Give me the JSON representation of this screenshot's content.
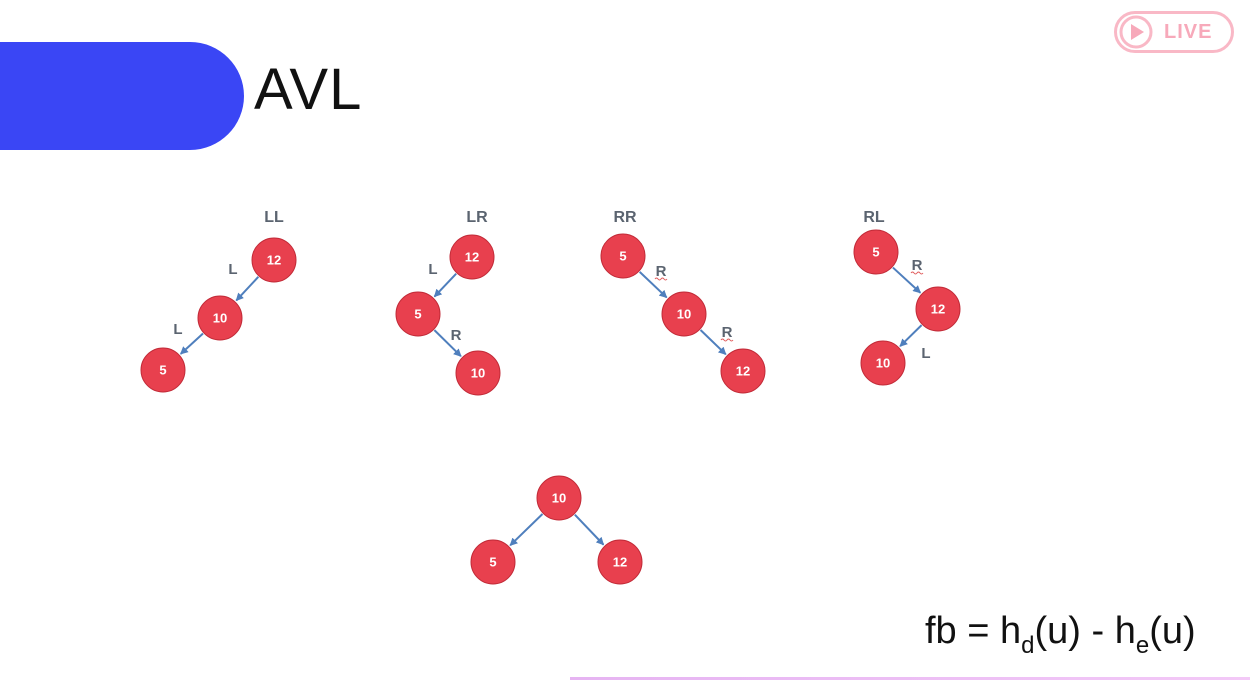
{
  "header": {
    "title": "AVL"
  },
  "badge": {
    "label": "LIVE",
    "icon": "play-icon"
  },
  "colors": {
    "accent_bar": "#3a46f5",
    "node_fill": "#e8404e",
    "edge": "#4f7fbd",
    "label": "#5b6470",
    "badge": "#f7a9ba"
  },
  "cases": [
    {
      "id": "ll",
      "label": "LL"
    },
    {
      "id": "lr",
      "label": "LR"
    },
    {
      "id": "rr",
      "label": "RR"
    },
    {
      "id": "rl",
      "label": "RL"
    }
  ],
  "nodes": [
    {
      "id": "ll_root",
      "value": "12"
    },
    {
      "id": "ll_mid",
      "value": "10"
    },
    {
      "id": "ll_leaf",
      "value": "5"
    },
    {
      "id": "lr_root",
      "value": "12"
    },
    {
      "id": "lr_mid",
      "value": "5"
    },
    {
      "id": "lr_leaf",
      "value": "10"
    },
    {
      "id": "rr_root",
      "value": "5"
    },
    {
      "id": "rr_mid",
      "value": "10"
    },
    {
      "id": "rr_leaf",
      "value": "12"
    },
    {
      "id": "rl_root",
      "value": "5"
    },
    {
      "id": "rl_mid",
      "value": "12"
    },
    {
      "id": "rl_leaf",
      "value": "10"
    },
    {
      "id": "bal_root",
      "value": "10"
    },
    {
      "id": "bal_left",
      "value": "5"
    },
    {
      "id": "bal_right",
      "value": "12"
    }
  ],
  "edges": [
    {
      "from": "ll_root",
      "to": "ll_mid",
      "label": "L"
    },
    {
      "from": "ll_mid",
      "to": "ll_leaf",
      "label": "L"
    },
    {
      "from": "lr_root",
      "to": "lr_mid",
      "label": "L"
    },
    {
      "from": "lr_mid",
      "to": "lr_leaf",
      "label": "R"
    },
    {
      "from": "rr_root",
      "to": "rr_mid",
      "label": "R"
    },
    {
      "from": "rr_mid",
      "to": "rr_leaf",
      "label": "R"
    },
    {
      "from": "rl_root",
      "to": "rl_mid",
      "label": "R"
    },
    {
      "from": "rl_mid",
      "to": "rl_leaf",
      "label": "L"
    },
    {
      "from": "bal_root",
      "to": "bal_left",
      "label": ""
    },
    {
      "from": "bal_root",
      "to": "bal_right",
      "label": ""
    }
  ],
  "formula": {
    "lhs": "fb = h",
    "sub_d": "d",
    "mid": "(u) - h",
    "sub_e": "e",
    "end": "(u)"
  }
}
